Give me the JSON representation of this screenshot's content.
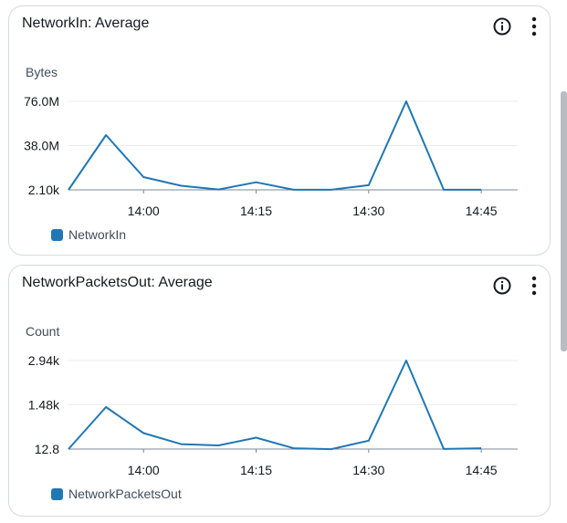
{
  "series_color": "#1f77b4",
  "chart_data": [
    {
      "type": "line",
      "title": "NetworkIn: Average",
      "ylabel": "Bytes",
      "y_tick_values": [
        2100,
        38000000,
        76000000
      ],
      "y_tick_labels": [
        "2.10k",
        "38.0M",
        "76.0M"
      ],
      "ylim": [
        2100,
        76000000
      ],
      "x_tick_labels": [
        "14:00",
        "14:15",
        "14:30",
        "14:45"
      ],
      "x": [
        "13:50",
        "13:55",
        "14:00",
        "14:05",
        "14:10",
        "14:15",
        "14:20",
        "14:25",
        "14:30",
        "14:35",
        "14:40",
        "14:45"
      ],
      "series": [
        {
          "name": "NetworkIn",
          "values": [
            2100,
            47000000,
            11000000,
            3500000,
            300000,
            6500000,
            100000,
            100000,
            4000000,
            76000000,
            100000,
            100000
          ]
        }
      ],
      "grid": true,
      "legend": "bottom-left"
    },
    {
      "type": "line",
      "title": "NetworkPacketsOut: Average",
      "ylabel": "Count",
      "y_tick_values": [
        12.8,
        1480,
        2940
      ],
      "y_tick_labels": [
        "12.8",
        "1.48k",
        "2.94k"
      ],
      "ylim": [
        12.8,
        2940
      ],
      "x_tick_labels": [
        "14:00",
        "14:15",
        "14:30",
        "14:45"
      ],
      "x": [
        "13:50",
        "13:55",
        "14:00",
        "14:05",
        "14:10",
        "14:15",
        "14:20",
        "14:25",
        "14:30",
        "14:35",
        "14:40",
        "14:45"
      ],
      "series": [
        {
          "name": "NetworkPacketsOut",
          "values": [
            12.8,
            1400,
            540,
            175,
            135,
            390,
            40,
            10,
            290,
            2940,
            15,
            40
          ]
        }
      ],
      "grid": true,
      "legend": "bottom-left"
    }
  ]
}
